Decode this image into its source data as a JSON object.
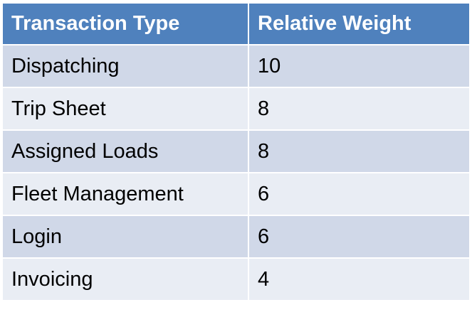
{
  "table": {
    "headers": [
      "Transaction Type",
      "Relative Weight"
    ],
    "rows": [
      [
        "Dispatching",
        "10"
      ],
      [
        "Trip Sheet",
        "8"
      ],
      [
        "Assigned Loads",
        "8"
      ],
      [
        "Fleet Management",
        "6"
      ],
      [
        "Login",
        "6"
      ],
      [
        "Invoicing",
        "4"
      ]
    ]
  },
  "colors": {
    "header_bg": "#4f81bd",
    "header_text": "#ffffff",
    "row_odd_bg": "#d0d8e8",
    "row_even_bg": "#e9edf4"
  }
}
